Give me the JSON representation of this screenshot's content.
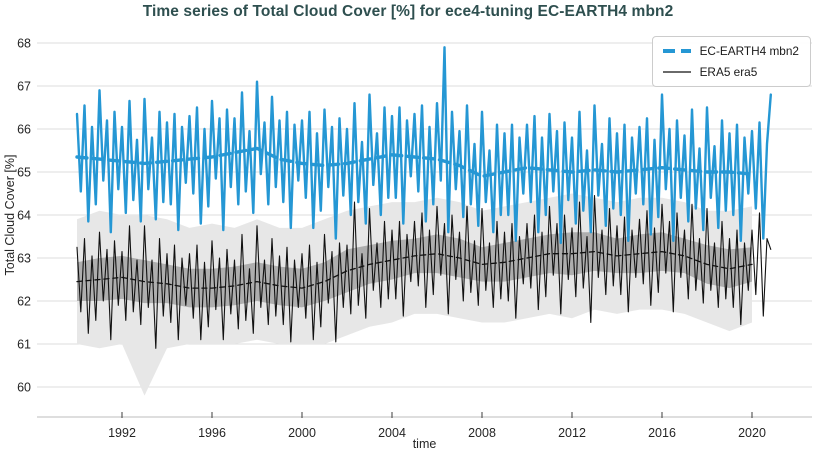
{
  "title": "Time series of Total Cloud Cover [%] for ece4-tuning EC-EARTH4 mbn2",
  "colors": {
    "model_blue": "#2597d4",
    "obs_black": "#111111",
    "band_outer": "#e7e7e7",
    "band_inner": "#aeaeae",
    "grid": "#dcdcdc",
    "axis_line": "#d4d4d4",
    "tick_mark": "#3c3c3c",
    "tick_text": "#262626",
    "title_text": "#2e4f4f",
    "legend_border": "#cccccc"
  },
  "legend": {
    "items": [
      {
        "label": "EC-EARTH4 mbn2",
        "series": "model"
      },
      {
        "label": "ERA5 era5",
        "series": "obs"
      }
    ]
  },
  "chart_data": {
    "type": "line",
    "title": "Time series of Total Cloud Cover [%] for ece4-tuning EC-EARTH4 mbn2",
    "xlabel": "time",
    "ylabel": "Total Cloud Cover [%]",
    "xlim": [
      1988.3,
      2022.5
    ],
    "ylim": [
      60,
      68
    ],
    "yticks": [
      60,
      61,
      62,
      63,
      64,
      65,
      66,
      67,
      68
    ],
    "xticks": [
      1992,
      1996,
      2000,
      2004,
      2008,
      2012,
      2016,
      2020
    ],
    "grid": "horizontal",
    "legend_position": "upper right",
    "x_start": 1990,
    "series": [
      {
        "name": "EC-EARTH4 mbn2",
        "role": "model_monthly",
        "x_step_years": 0.1666667,
        "values": [
          66.35,
          64.55,
          66.55,
          63.85,
          66.05,
          64.25,
          66.9,
          64.8,
          66.2,
          63.6,
          66.4,
          64.6,
          66.05,
          64.05,
          66.65,
          64.35,
          65.75,
          63.85,
          66.7,
          64.6,
          65.8,
          63.9,
          66.4,
          64.3,
          66.15,
          64.25,
          66.35,
          63.65,
          66.05,
          64.75,
          66.3,
          64.5,
          66.5,
          63.8,
          66.0,
          64.2,
          66.65,
          64.85,
          66.25,
          63.65,
          66.45,
          64.65,
          66.25,
          64.25,
          66.85,
          64.55,
          65.95,
          64.05,
          67.1,
          64.95,
          66.15,
          64.25,
          66.75,
          64.65,
          66.2,
          64.3,
          66.4,
          63.7,
          66.1,
          64.8,
          66.2,
          64.4,
          66.4,
          63.7,
          65.9,
          64.1,
          66.45,
          64.65,
          66.05,
          63.45,
          66.25,
          64.45,
          66.0,
          64.0,
          66.6,
          64.3,
          65.7,
          63.8,
          66.8,
          64.7,
          65.9,
          64.0,
          66.5,
          64.4,
          66.3,
          64.4,
          66.5,
          63.8,
          66.2,
          64.9,
          66.35,
          64.55,
          66.55,
          63.85,
          66.05,
          64.25,
          66.6,
          64.8,
          67.9,
          63.6,
          66.4,
          64.6,
          65.95,
          63.95,
          66.55,
          64.25,
          65.65,
          63.75,
          66.4,
          64.3,
          65.5,
          63.6,
          66.1,
          64.0,
          65.9,
          64.0,
          66.1,
          63.4,
          65.8,
          64.5,
          66.1,
          64.3,
          66.3,
          63.6,
          65.8,
          64.0,
          66.35,
          64.55,
          65.95,
          63.35,
          66.15,
          64.35,
          65.8,
          63.8,
          66.4,
          64.1,
          65.5,
          63.6,
          66.55,
          64.45,
          65.65,
          63.75,
          66.25,
          64.15,
          65.9,
          64.0,
          66.1,
          63.4,
          65.8,
          64.5,
          66.05,
          64.25,
          66.25,
          63.55,
          65.75,
          63.95,
          66.8,
          64.6,
          66.0,
          63.4,
          66.2,
          64.4,
          65.85,
          63.85,
          66.45,
          64.15,
          65.55,
          63.65,
          66.5,
          64.4,
          65.6,
          63.7,
          66.2,
          64.1,
          65.9,
          64.0,
          66.1,
          63.4,
          65.8,
          64.5,
          65.95,
          64.15,
          66.15,
          63.45,
          65.65,
          66.8
        ]
      },
      {
        "name": "EC-EARTH4 mbn2 rolling mean",
        "role": "model_trend",
        "x_step_years": 1,
        "values": [
          65.35,
          65.3,
          65.25,
          65.2,
          65.25,
          65.3,
          65.35,
          65.45,
          65.55,
          65.3,
          65.2,
          65.15,
          65.2,
          65.3,
          65.4,
          65.35,
          65.3,
          65.15,
          64.9,
          65.0,
          65.1,
          65.05,
          65.0,
          65.05,
          65.0,
          65.05,
          65.1,
          65.05,
          65.0,
          65.0,
          64.95
        ]
      },
      {
        "name": "ERA5 era5",
        "role": "obs_monthly",
        "x_step_years": 0.1666667,
        "values": [
          63.25,
          61.75,
          63.45,
          61.25,
          63.05,
          61.55,
          63.6,
          62.0,
          63.2,
          61.1,
          63.4,
          61.9,
          63.15,
          61.55,
          63.75,
          61.75,
          62.95,
          61.45,
          63.75,
          61.85,
          62.95,
          60.9,
          63.45,
          61.65,
          63.1,
          61.5,
          63.3,
          61.1,
          63.0,
          61.9,
          63.1,
          61.6,
          63.3,
          61.1,
          62.9,
          61.4,
          63.4,
          61.8,
          63.0,
          61.1,
          63.2,
          61.7,
          62.95,
          61.35,
          63.55,
          61.55,
          62.75,
          61.25,
          63.75,
          61.85,
          62.95,
          61.45,
          63.45,
          61.65,
          63.05,
          61.45,
          63.25,
          61.05,
          62.95,
          61.85,
          63.1,
          61.6,
          63.3,
          61.1,
          62.9,
          61.4,
          63.55,
          61.95,
          63.15,
          61.05,
          63.35,
          61.85,
          63.3,
          61.7,
          64.3,
          61.9,
          63.1,
          61.6,
          64.15,
          62.25,
          63.35,
          61.85,
          63.85,
          62.05,
          63.65,
          62.05,
          63.85,
          61.65,
          63.55,
          62.45,
          63.85,
          62.35,
          64.05,
          61.85,
          63.65,
          62.15,
          64.2,
          62.6,
          63.8,
          61.7,
          64.0,
          62.5,
          63.6,
          62.0,
          64.2,
          62.2,
          63.4,
          61.9,
          64.15,
          62.25,
          63.35,
          61.85,
          63.85,
          62.05,
          63.6,
          62.0,
          63.8,
          61.6,
          63.5,
          62.4,
          63.8,
          62.3,
          64.0,
          61.8,
          63.6,
          62.1,
          64.2,
          62.6,
          63.8,
          61.7,
          64.0,
          62.5,
          63.7,
          62.1,
          64.3,
          62.3,
          63.5,
          61.5,
          64.45,
          62.55,
          63.65,
          62.15,
          64.15,
          62.35,
          63.75,
          62.15,
          63.95,
          61.75,
          63.65,
          62.55,
          63.9,
          62.4,
          64.1,
          61.9,
          63.7,
          62.2,
          64.25,
          62.65,
          63.85,
          61.75,
          64.05,
          62.55,
          63.65,
          62.05,
          64.25,
          62.25,
          63.45,
          61.95,
          64.15,
          62.25,
          63.35,
          61.85,
          63.85,
          62.05,
          63.45,
          61.85,
          63.65,
          61.45,
          63.35,
          62.25,
          63.65,
          62.15,
          64.05,
          61.65,
          63.45,
          63.2
        ]
      },
      {
        "name": "ERA5 era5 rolling mean",
        "role": "obs_trend",
        "x_step_years": 1,
        "values": [
          62.45,
          62.5,
          62.55,
          62.45,
          62.4,
          62.3,
          62.3,
          62.35,
          62.45,
          62.35,
          62.3,
          62.45,
          62.7,
          62.85,
          62.95,
          63.05,
          63.1,
          63.0,
          62.85,
          62.9,
          63.0,
          63.1,
          63.1,
          63.15,
          63.05,
          63.1,
          63.15,
          63.05,
          62.85,
          62.75,
          62.85
        ]
      }
    ],
    "bands": [
      {
        "name": "era5-outer-range",
        "level": "outer",
        "x_step_years": 1,
        "upper": [
          63.9,
          64.1,
          64.0,
          64.0,
          63.9,
          63.7,
          63.8,
          63.7,
          63.9,
          63.7,
          63.7,
          63.9,
          64.1,
          64.2,
          64.3,
          64.3,
          64.4,
          64.3,
          64.1,
          64.2,
          64.3,
          64.4,
          64.5,
          64.4,
          64.3,
          64.4,
          64.4,
          64.3,
          64.1,
          64.1,
          64.2
        ],
        "lower": [
          61.0,
          60.9,
          61.0,
          59.8,
          60.9,
          61.0,
          61.0,
          61.0,
          61.1,
          61.0,
          61.0,
          61.0,
          61.2,
          61.4,
          61.5,
          61.7,
          61.7,
          61.6,
          61.5,
          61.5,
          61.6,
          61.7,
          61.6,
          61.8,
          61.7,
          61.8,
          61.8,
          61.7,
          61.5,
          61.3,
          61.5
        ]
      },
      {
        "name": "era5-inner-range",
        "level": "inner",
        "x_step_years": 1,
        "upper": [
          62.9,
          63.0,
          63.05,
          62.95,
          62.85,
          62.75,
          62.75,
          62.8,
          62.9,
          62.8,
          62.75,
          62.9,
          63.2,
          63.3,
          63.4,
          63.45,
          63.55,
          63.45,
          63.25,
          63.35,
          63.45,
          63.55,
          63.6,
          63.6,
          63.45,
          63.55,
          63.6,
          63.45,
          63.3,
          63.2,
          63.25
        ],
        "lower": [
          62.0,
          62.0,
          62.05,
          61.95,
          61.95,
          61.85,
          61.85,
          61.9,
          62.0,
          61.9,
          61.85,
          62.0,
          62.2,
          62.4,
          62.5,
          62.65,
          62.65,
          62.55,
          62.45,
          62.45,
          62.55,
          62.65,
          62.6,
          62.7,
          62.65,
          62.65,
          62.7,
          62.65,
          62.4,
          62.3,
          62.45
        ]
      }
    ]
  }
}
